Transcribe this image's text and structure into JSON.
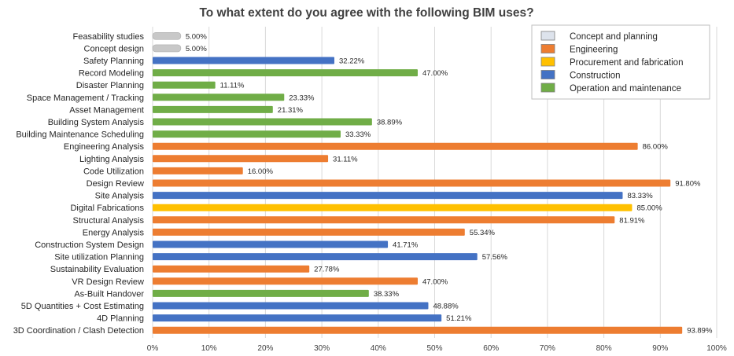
{
  "chart_data": {
    "type": "bar",
    "orientation": "horizontal",
    "title": "To what extent do you agree with the following BIM uses?",
    "xlabel": "",
    "ylabel": "",
    "xlim": [
      0,
      100
    ],
    "x_ticks": [
      "0%",
      "10%",
      "20%",
      "30%",
      "40%",
      "50%",
      "60%",
      "70%",
      "80%",
      "90%",
      "100%"
    ],
    "grid": true,
    "legend_position": "top-right",
    "legend": [
      {
        "name": "Concept and planning",
        "color": "#c8c8c8"
      },
      {
        "name": "Engineering",
        "color": "#ed7d31"
      },
      {
        "name": "Procurement and fabrication",
        "color": "#ffc000"
      },
      {
        "name": "Construction",
        "color": "#4472c4"
      },
      {
        "name": "Operation and maintenance",
        "color": "#70ad47"
      }
    ],
    "bars": [
      {
        "category": "Feasability studies",
        "value": 5.0,
        "label": "5.00%",
        "group": "Concept and planning"
      },
      {
        "category": "Concept design",
        "value": 5.0,
        "label": "5.00%",
        "group": "Concept and planning"
      },
      {
        "category": "Safety Planning",
        "value": 32.22,
        "label": "32.22%",
        "group": "Construction"
      },
      {
        "category": "Record Modeling",
        "value": 47.0,
        "label": "47.00%",
        "group": "Operation and maintenance"
      },
      {
        "category": "Disaster Planning",
        "value": 11.11,
        "label": "11.11%",
        "group": "Operation and maintenance"
      },
      {
        "category": "Space Management / Tracking",
        "value": 23.33,
        "label": "23.33%",
        "group": "Operation and maintenance"
      },
      {
        "category": "Asset Management",
        "value": 21.31,
        "label": "21.31%",
        "group": "Operation and maintenance"
      },
      {
        "category": "Building System Analysis",
        "value": 38.89,
        "label": "38.89%",
        "group": "Operation and maintenance"
      },
      {
        "category": "Building Maintenance Scheduling",
        "value": 33.33,
        "label": "33.33%",
        "group": "Operation and maintenance"
      },
      {
        "category": "Engineering Analysis",
        "value": 86.0,
        "label": "86.00%",
        "group": "Engineering"
      },
      {
        "category": "Lighting Analysis",
        "value": 31.11,
        "label": "31.11%",
        "group": "Engineering"
      },
      {
        "category": "Code Utilization",
        "value": 16.0,
        "label": "16.00%",
        "group": "Engineering"
      },
      {
        "category": "Design Review",
        "value": 91.8,
        "label": "91.80%",
        "group": "Engineering"
      },
      {
        "category": "Site Analysis",
        "value": 83.33,
        "label": "83.33%",
        "group": "Construction"
      },
      {
        "category": "Digital Fabrications",
        "value": 85.0,
        "label": "85.00%",
        "group": "Procurement and fabrication"
      },
      {
        "category": "Structural Analysis",
        "value": 81.91,
        "label": "81.91%",
        "group": "Engineering"
      },
      {
        "category": "Energy Analysis",
        "value": 55.34,
        "label": "55.34%",
        "group": "Engineering"
      },
      {
        "category": "Construction System Design",
        "value": 41.71,
        "label": "41.71%",
        "group": "Construction"
      },
      {
        "category": "Site utilization Planning",
        "value": 57.56,
        "label": "57.56%",
        "group": "Construction"
      },
      {
        "category": "Sustainability Evaluation",
        "value": 27.78,
        "label": "27.78%",
        "group": "Engineering"
      },
      {
        "category": "VR Design Review",
        "value": 47.0,
        "label": "47.00%",
        "group": "Engineering"
      },
      {
        "category": "As-Built Handover",
        "value": 38.33,
        "label": "38.33%",
        "group": "Operation and maintenance"
      },
      {
        "category": "5D Quantities + Cost Estimating",
        "value": 48.88,
        "label": "48.88%",
        "group": "Construction"
      },
      {
        "category": "4D Planning",
        "value": 51.21,
        "label": "51.21%",
        "group": "Construction"
      },
      {
        "category": "3D Coordination / Clash Detection",
        "value": 93.89,
        "label": "93.89%",
        "group": "Engineering"
      }
    ]
  }
}
